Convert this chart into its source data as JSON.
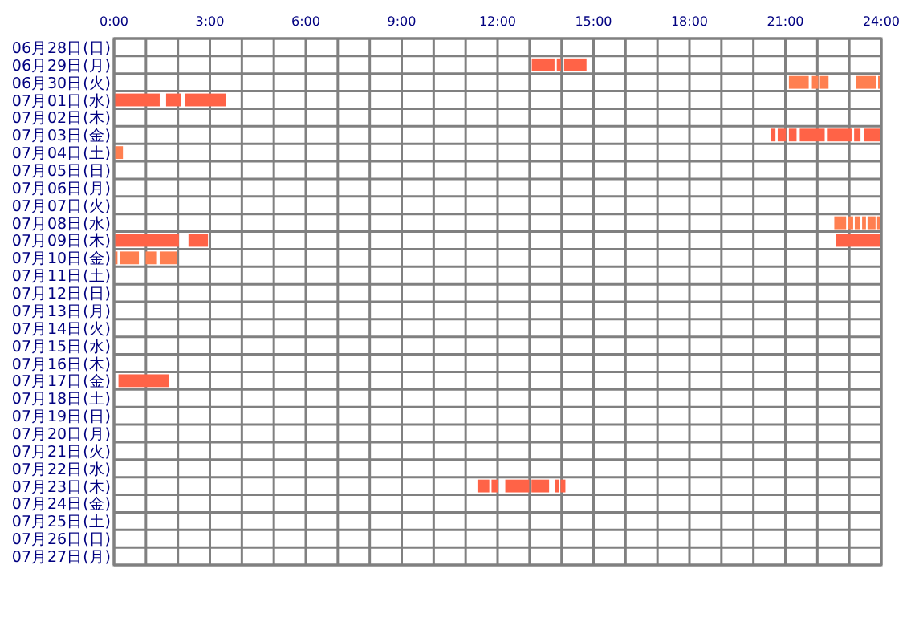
{
  "chart_data": {
    "type": "bar",
    "orientation": "horizontal",
    "grid": true,
    "categories": [
      "06月28日(日)",
      "06月29日(月)",
      "06月30日(火)",
      "07月01日(水)",
      "07月02日(木)",
      "07月03日(金)",
      "07月04日(土)",
      "07月05日(日)",
      "07月06日(月)",
      "07月07日(火)",
      "07月08日(水)",
      "07月09日(木)",
      "07月10日(金)",
      "07月11日(土)",
      "07月12日(日)",
      "07月13日(月)",
      "07月14日(火)",
      "07月15日(水)",
      "07月16日(木)",
      "07月17日(金)",
      "07月18日(土)",
      "07月19日(日)",
      "07月20日(月)",
      "07月21日(火)",
      "07月22日(水)",
      "07月23日(木)",
      "07月24日(金)",
      "07月25日(土)",
      "07月26日(日)",
      "07月27日(月)"
    ],
    "xlim": [
      0,
      24
    ],
    "xticks": [
      {
        "value": 0,
        "label": "0:00"
      },
      {
        "value": 1,
        "label": null
      },
      {
        "value": 2,
        "label": null
      },
      {
        "value": 3,
        "label": "3:00"
      },
      {
        "value": 4,
        "label": null
      },
      {
        "value": 5,
        "label": null
      },
      {
        "value": 6,
        "label": "6:00"
      },
      {
        "value": 7,
        "label": null
      },
      {
        "value": 8,
        "label": null
      },
      {
        "value": 9,
        "label": "9:00"
      },
      {
        "value": 10,
        "label": null
      },
      {
        "value": 11,
        "label": null
      },
      {
        "value": 12,
        "label": "12:00"
      },
      {
        "value": 13,
        "label": null
      },
      {
        "value": 14,
        "label": null
      },
      {
        "value": 15,
        "label": "15:00"
      },
      {
        "value": 16,
        "label": null
      },
      {
        "value": 17,
        "label": null
      },
      {
        "value": 18,
        "label": "18:00"
      },
      {
        "value": 19,
        "label": null
      },
      {
        "value": 20,
        "label": null
      },
      {
        "value": 21,
        "label": "21:00"
      },
      {
        "value": 22,
        "label": null
      },
      {
        "value": 23,
        "label": null
      },
      {
        "value": 24,
        "label": "24:00"
      }
    ],
    "series": [
      {
        "base": [
          null,
          13.07,
          21.11,
          0,
          null,
          20.56,
          0.03,
          null,
          null,
          null,
          22.53,
          0.03,
          0.03,
          null,
          null,
          null,
          null,
          null,
          null,
          0.14,
          null,
          null,
          null,
          null,
          null,
          11.37,
          null,
          null,
          null,
          null
        ],
        "values": [
          null,
          0.71,
          0.62,
          1.43,
          null,
          0.13,
          0.25,
          null,
          null,
          null,
          0.37,
          2.0,
          0.08,
          null,
          null,
          null,
          null,
          null,
          null,
          1.59,
          null,
          null,
          null,
          null,
          null,
          0.37,
          null,
          null,
          null,
          null
        ],
        "colors": [
          null,
          "#ff6347",
          "#ff7f50",
          "#ff6347",
          null,
          "#ff6347",
          "#ff7f50",
          null,
          null,
          null,
          "#ff7f50",
          "#ff6347",
          "#ff7f50",
          null,
          null,
          null,
          null,
          null,
          null,
          "#ff6347",
          null,
          null,
          null,
          null,
          null,
          "#ff6347",
          null,
          null,
          null,
          null
        ]
      },
      {
        "base": [
          null,
          13.85,
          21.83,
          1.63,
          null,
          20.76,
          null,
          null,
          null,
          null,
          22.97,
          2.33,
          0.18,
          null,
          null,
          null,
          null,
          null,
          null,
          null,
          null,
          null,
          null,
          null,
          null,
          11.81,
          null,
          null,
          null,
          null
        ],
        "values": [
          null,
          0.13,
          0.2,
          0.47,
          null,
          0.26,
          null,
          null,
          null,
          null,
          0.15,
          0.61,
          0.6,
          null,
          null,
          null,
          null,
          null,
          null,
          null,
          null,
          null,
          null,
          null,
          null,
          0.21,
          null,
          null,
          null,
          null
        ],
        "colors": [
          null,
          "#ff6347",
          "#ff7f50",
          "#ff6347",
          null,
          "#ff6347",
          null,
          null,
          null,
          null,
          "#ff7f50",
          "#ff6347",
          "#ff7f50",
          null,
          null,
          null,
          null,
          null,
          null,
          null,
          null,
          null,
          null,
          null,
          null,
          "#ff6347",
          null,
          null,
          null,
          null
        ]
      },
      {
        "base": [
          null,
          14.08,
          22.08,
          2.23,
          null,
          21.11,
          null,
          null,
          null,
          null,
          23.17,
          22.57,
          0.99,
          null,
          null,
          null,
          null,
          null,
          null,
          null,
          null,
          null,
          null,
          null,
          null,
          12.24,
          null,
          null,
          null,
          null
        ],
        "values": [
          null,
          0.7,
          0.27,
          1.26,
          null,
          0.24,
          null,
          null,
          null,
          null,
          0.17,
          1.43,
          0.33,
          null,
          null,
          null,
          null,
          null,
          null,
          null,
          null,
          null,
          null,
          null,
          null,
          0.75,
          null,
          null,
          null,
          null
        ],
        "colors": [
          null,
          "#ff6347",
          "#ff7f50",
          "#ff6347",
          null,
          "#ff6347",
          null,
          null,
          null,
          null,
          "#ff7f50",
          "#ff6347",
          "#ff7f50",
          null,
          null,
          null,
          null,
          null,
          null,
          null,
          null,
          null,
          null,
          null,
          null,
          "#ff6347",
          null,
          null,
          null,
          null
        ]
      },
      {
        "base": [
          null,
          null,
          23.22,
          null,
          null,
          21.45,
          null,
          null,
          null,
          null,
          23.4,
          null,
          1.43,
          null,
          null,
          null,
          null,
          null,
          null,
          null,
          null,
          null,
          null,
          null,
          null,
          13.06,
          null,
          null,
          null,
          null
        ],
        "values": [
          null,
          null,
          0.62,
          null,
          null,
          0.78,
          null,
          null,
          null,
          null,
          0.12,
          null,
          0.55,
          null,
          null,
          null,
          null,
          null,
          null,
          null,
          null,
          null,
          null,
          null,
          null,
          0.55,
          null,
          null,
          null,
          null
        ],
        "colors": [
          null,
          null,
          "#ff7f50",
          null,
          null,
          "#ff6347",
          null,
          null,
          null,
          null,
          "#ff7f50",
          null,
          "#ff7f50",
          null,
          null,
          null,
          null,
          null,
          null,
          null,
          null,
          null,
          null,
          null,
          null,
          "#ff6347",
          null,
          null,
          null,
          null
        ]
      },
      {
        "base": [
          null,
          null,
          23.9,
          null,
          null,
          22.3,
          null,
          null,
          null,
          null,
          23.57,
          null,
          null,
          null,
          null,
          null,
          null,
          null,
          null,
          null,
          null,
          null,
          null,
          null,
          null,
          13.8,
          null,
          null,
          null,
          null
        ],
        "values": [
          null,
          null,
          0.1,
          null,
          null,
          0.77,
          null,
          null,
          null,
          null,
          0.25,
          null,
          null,
          null,
          null,
          null,
          null,
          null,
          null,
          null,
          null,
          null,
          null,
          null,
          null,
          0.12,
          null,
          null,
          null,
          null
        ],
        "colors": [
          null,
          null,
          "#ff7f50",
          null,
          null,
          "#ff6347",
          null,
          null,
          null,
          null,
          "#ff7f50",
          null,
          null,
          null,
          null,
          null,
          null,
          null,
          null,
          null,
          null,
          null,
          null,
          null,
          null,
          "#ff6347",
          null,
          null,
          null,
          null
        ]
      },
      {
        "base": [
          null,
          null,
          null,
          null,
          null,
          23.15,
          null,
          null,
          null,
          null,
          23.87,
          null,
          null,
          null,
          null,
          null,
          null,
          null,
          null,
          null,
          null,
          null,
          null,
          null,
          null,
          13.97,
          null,
          null,
          null,
          null
        ],
        "values": [
          null,
          null,
          null,
          null,
          null,
          0.2,
          null,
          null,
          null,
          null,
          0.13,
          null,
          null,
          null,
          null,
          null,
          null,
          null,
          null,
          null,
          null,
          null,
          null,
          null,
          null,
          0.15,
          null,
          null,
          null,
          null
        ],
        "colors": [
          null,
          null,
          null,
          null,
          null,
          "#ff6347",
          null,
          null,
          null,
          null,
          "#ff7f50",
          null,
          null,
          null,
          null,
          null,
          null,
          null,
          null,
          null,
          null,
          null,
          null,
          null,
          null,
          "#ff6347",
          null,
          null,
          null,
          null
        ]
      },
      {
        "base": [
          null,
          null,
          null,
          null,
          null,
          23.45,
          null,
          null,
          null,
          null,
          null,
          null,
          null,
          null,
          null,
          null,
          null,
          null,
          null,
          null,
          null,
          null,
          null,
          null,
          null,
          null,
          null,
          null,
          null,
          null
        ],
        "values": [
          null,
          null,
          null,
          null,
          null,
          0.55,
          null,
          null,
          null,
          null,
          null,
          null,
          null,
          null,
          null,
          null,
          null,
          null,
          null,
          null,
          null,
          null,
          null,
          null,
          null,
          null,
          null,
          null,
          null,
          null
        ],
        "colors": [
          null,
          null,
          null,
          null,
          null,
          "#ff6347",
          null,
          null,
          null,
          null,
          null,
          null,
          null,
          null,
          null,
          null,
          null,
          null,
          null,
          null,
          null,
          null,
          null,
          null,
          null,
          null,
          null,
          null,
          null,
          null
        ]
      }
    ]
  }
}
